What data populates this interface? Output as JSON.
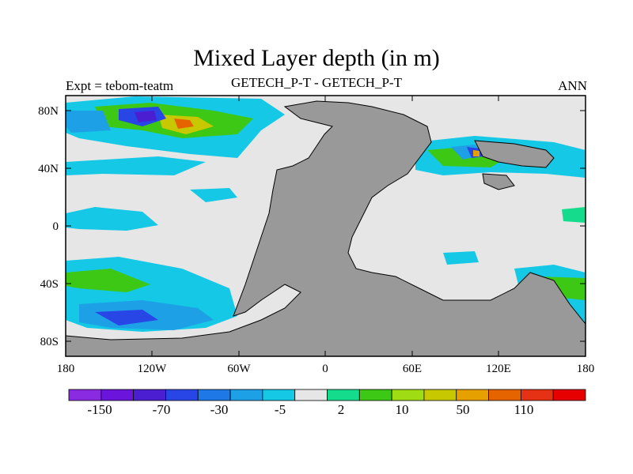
{
  "figure": {
    "title": "Mixed Layer depth (in m)",
    "left_label": "Expt = tebom-teatm",
    "center_label": "GETECH_P-T - GETECH_P-T",
    "right_label": "ANN"
  },
  "axes": {
    "lon_ticks": [
      "180",
      "120W",
      "60W",
      "0",
      "60E",
      "120E",
      "180"
    ],
    "lat_ticks": [
      "80N",
      "40N",
      "0",
      "40S",
      "80S"
    ]
  },
  "colorbar": {
    "labels": [
      "-150",
      "-70",
      "-30",
      "-5",
      "2",
      "10",
      "50",
      "110"
    ],
    "colors": [
      "#8a2be2",
      "#6a14dc",
      "#4b1ed2",
      "#2846e6",
      "#1e78e6",
      "#1ea0e6",
      "#14c8e6",
      "#e6e6e6",
      "#14dc8c",
      "#3cc814",
      "#a0dc14",
      "#c8c800",
      "#e6a000",
      "#e66400",
      "#e63214",
      "#e60000"
    ]
  },
  "map_colors": {
    "land": "#999999",
    "ocean_neutral": "#e6e6e6",
    "background": "#ffffff"
  }
}
